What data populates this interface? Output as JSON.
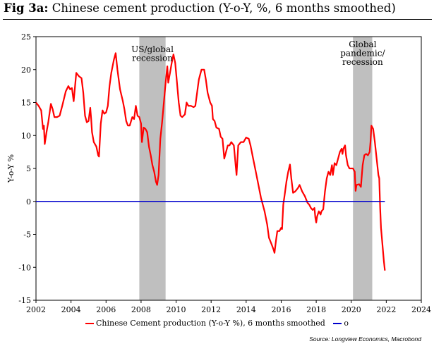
{
  "figure": {
    "label": "Fig 3a:",
    "title": "Chinese cement production (Y-o-Y, %, 6 months smoothed)",
    "source": "Source: Longview Economics, Macrobond"
  },
  "chart_data": {
    "type": "line",
    "ylabel": "Y-o-Y %",
    "xlim": [
      2002,
      2024
    ],
    "ylim": [
      -15,
      25
    ],
    "x_ticks": [
      "2002",
      "2004",
      "2006",
      "2008",
      "2010",
      "2012",
      "2014",
      "2016",
      "2018",
      "2020",
      "2022",
      "2024"
    ],
    "y_ticks": [
      "25",
      "20",
      "15",
      "10",
      "5",
      "0",
      "-5",
      "-10",
      "-15"
    ],
    "grid": false,
    "legend_position": "bottom",
    "shaded_regions": [
      {
        "x0": 2007.9,
        "x1": 2009.4,
        "label": [
          "US/global",
          "recession"
        ],
        "color": "#bfbfbf"
      },
      {
        "x0": 2020.1,
        "x1": 2021.2,
        "label": [
          "Global",
          "pandemic/",
          "recession"
        ],
        "color": "#bfbfbf"
      }
    ],
    "series": [
      {
        "name": "Chinese Cement production (Y-o-Y %), 6 months smoothed",
        "color": "#ff0000",
        "points": [
          [
            2002.0,
            15.0
          ],
          [
            2002.15,
            14.5
          ],
          [
            2002.3,
            13.8
          ],
          [
            2002.4,
            11.0
          ],
          [
            2002.45,
            11.5
          ],
          [
            2002.5,
            8.7
          ],
          [
            2002.6,
            10.5
          ],
          [
            2002.7,
            12.0
          ],
          [
            2002.85,
            14.8
          ],
          [
            2002.95,
            14.0
          ],
          [
            2003.05,
            12.8
          ],
          [
            2003.2,
            12.8
          ],
          [
            2003.35,
            13.0
          ],
          [
            2003.5,
            14.5
          ],
          [
            2003.7,
            16.7
          ],
          [
            2003.85,
            17.5
          ],
          [
            2003.95,
            17.0
          ],
          [
            2004.05,
            17.2
          ],
          [
            2004.15,
            15.2
          ],
          [
            2004.25,
            18.0
          ],
          [
            2004.3,
            19.5
          ],
          [
            2004.45,
            19.0
          ],
          [
            2004.6,
            18.7
          ],
          [
            2004.7,
            16.5
          ],
          [
            2004.8,
            13.0
          ],
          [
            2004.9,
            12.0
          ],
          [
            2005.0,
            12.2
          ],
          [
            2005.1,
            14.2
          ],
          [
            2005.15,
            12.5
          ],
          [
            2005.2,
            10.5
          ],
          [
            2005.3,
            9.0
          ],
          [
            2005.45,
            8.3
          ],
          [
            2005.55,
            7.0
          ],
          [
            2005.6,
            6.8
          ],
          [
            2005.7,
            11.8
          ],
          [
            2005.8,
            13.8
          ],
          [
            2005.9,
            13.3
          ],
          [
            2006.0,
            13.5
          ],
          [
            2006.1,
            14.5
          ],
          [
            2006.2,
            17.5
          ],
          [
            2006.3,
            19.5
          ],
          [
            2006.45,
            21.5
          ],
          [
            2006.55,
            22.5
          ],
          [
            2006.65,
            20.0
          ],
          [
            2006.8,
            17.0
          ],
          [
            2006.95,
            15.3
          ],
          [
            2007.05,
            14.0
          ],
          [
            2007.15,
            12.2
          ],
          [
            2007.25,
            11.5
          ],
          [
            2007.35,
            11.5
          ],
          [
            2007.5,
            12.8
          ],
          [
            2007.6,
            12.5
          ],
          [
            2007.7,
            14.5
          ],
          [
            2007.8,
            13.0
          ],
          [
            2007.9,
            12.8
          ],
          [
            2008.0,
            11.8
          ],
          [
            2008.05,
            9.0
          ],
          [
            2008.15,
            11.2
          ],
          [
            2008.25,
            11.0
          ],
          [
            2008.35,
            10.5
          ],
          [
            2008.45,
            8.3
          ],
          [
            2008.55,
            7.0
          ],
          [
            2008.65,
            5.5
          ],
          [
            2008.75,
            4.5
          ],
          [
            2008.85,
            3.0
          ],
          [
            2008.92,
            2.5
          ],
          [
            2009.0,
            4.0
          ],
          [
            2009.1,
            9.5
          ],
          [
            2009.2,
            12.0
          ],
          [
            2009.3,
            15.0
          ],
          [
            2009.4,
            18.0
          ],
          [
            2009.5,
            20.5
          ],
          [
            2009.55,
            18.0
          ],
          [
            2009.65,
            19.5
          ],
          [
            2009.75,
            21.0
          ],
          [
            2009.85,
            22.3
          ],
          [
            2009.95,
            21.0
          ],
          [
            2010.05,
            18.0
          ],
          [
            2010.15,
            15.0
          ],
          [
            2010.25,
            13.0
          ],
          [
            2010.35,
            12.8
          ],
          [
            2010.5,
            13.2
          ],
          [
            2010.6,
            15.0
          ],
          [
            2010.7,
            14.5
          ],
          [
            2010.85,
            14.5
          ],
          [
            2011.0,
            14.3
          ],
          [
            2011.1,
            14.5
          ],
          [
            2011.2,
            16.5
          ],
          [
            2011.3,
            18.5
          ],
          [
            2011.45,
            20.0
          ],
          [
            2011.6,
            20.0
          ],
          [
            2011.7,
            18.5
          ],
          [
            2011.8,
            16.5
          ],
          [
            2011.95,
            15.0
          ],
          [
            2012.05,
            14.5
          ],
          [
            2012.1,
            12.5
          ],
          [
            2012.2,
            12.2
          ],
          [
            2012.3,
            11.2
          ],
          [
            2012.45,
            11.0
          ],
          [
            2012.55,
            9.8
          ],
          [
            2012.65,
            9.5
          ],
          [
            2012.75,
            6.5
          ],
          [
            2012.85,
            7.5
          ],
          [
            2012.95,
            8.5
          ],
          [
            2013.05,
            8.5
          ],
          [
            2013.15,
            9.0
          ],
          [
            2013.3,
            8.5
          ],
          [
            2013.4,
            5.5
          ],
          [
            2013.45,
            4.0
          ],
          [
            2013.55,
            8.5
          ],
          [
            2013.7,
            9.0
          ],
          [
            2013.85,
            9.0
          ],
          [
            2014.0,
            9.7
          ],
          [
            2014.15,
            9.5
          ],
          [
            2014.25,
            8.5
          ],
          [
            2014.4,
            6.5
          ],
          [
            2014.55,
            4.5
          ],
          [
            2014.7,
            2.5
          ],
          [
            2014.85,
            0.5
          ],
          [
            2014.95,
            -0.5
          ],
          [
            2015.05,
            -1.5
          ],
          [
            2015.2,
            -3.5
          ],
          [
            2015.3,
            -5.5
          ],
          [
            2015.45,
            -6.5
          ],
          [
            2015.55,
            -7.2
          ],
          [
            2015.62,
            -7.8
          ],
          [
            2015.7,
            -6.0
          ],
          [
            2015.78,
            -4.5
          ],
          [
            2015.9,
            -4.5
          ],
          [
            2016.0,
            -4.0
          ],
          [
            2016.05,
            -4.2
          ],
          [
            2016.12,
            -0.5
          ],
          [
            2016.2,
            1.0
          ],
          [
            2016.3,
            3.0
          ],
          [
            2016.4,
            4.5
          ],
          [
            2016.5,
            5.6
          ],
          [
            2016.58,
            3.5
          ],
          [
            2016.68,
            1.3
          ],
          [
            2016.8,
            1.5
          ],
          [
            2016.95,
            2.0
          ],
          [
            2017.05,
            2.5
          ],
          [
            2017.2,
            1.5
          ],
          [
            2017.35,
            0.8
          ],
          [
            2017.5,
            -0.2
          ],
          [
            2017.6,
            -0.5
          ],
          [
            2017.7,
            -1.0
          ],
          [
            2017.8,
            -1.3
          ],
          [
            2017.9,
            -1.0
          ],
          [
            2017.95,
            -2.5
          ],
          [
            2018.0,
            -3.2
          ],
          [
            2018.05,
            -2.3
          ],
          [
            2018.15,
            -1.5
          ],
          [
            2018.25,
            -2.0
          ],
          [
            2018.3,
            -1.5
          ],
          [
            2018.4,
            -1.2
          ],
          [
            2018.5,
            1.5
          ],
          [
            2018.6,
            3.5
          ],
          [
            2018.7,
            4.5
          ],
          [
            2018.8,
            4.0
          ],
          [
            2018.9,
            5.5
          ],
          [
            2018.95,
            4.0
          ],
          [
            2019.05,
            5.8
          ],
          [
            2019.15,
            5.5
          ],
          [
            2019.25,
            6.5
          ],
          [
            2019.35,
            7.5
          ],
          [
            2019.45,
            8.0
          ],
          [
            2019.5,
            7.2
          ],
          [
            2019.55,
            8.0
          ],
          [
            2019.65,
            8.5
          ],
          [
            2019.7,
            7.0
          ],
          [
            2019.8,
            5.5
          ],
          [
            2019.9,
            5.0
          ],
          [
            2020.0,
            5.0
          ],
          [
            2020.1,
            5.0
          ],
          [
            2020.2,
            4.5
          ],
          [
            2020.25,
            1.6
          ],
          [
            2020.3,
            2.5
          ],
          [
            2020.45,
            2.6
          ],
          [
            2020.55,
            2.2
          ],
          [
            2020.65,
            5.5
          ],
          [
            2020.75,
            7.0
          ],
          [
            2020.85,
            7.2
          ],
          [
            2020.95,
            7.0
          ],
          [
            2021.05,
            7.5
          ],
          [
            2021.1,
            9.0
          ],
          [
            2021.15,
            11.5
          ],
          [
            2021.25,
            11.0
          ],
          [
            2021.35,
            9.0
          ],
          [
            2021.45,
            6.5
          ],
          [
            2021.55,
            4.0
          ],
          [
            2021.6,
            3.5
          ],
          [
            2021.65,
            -1.0
          ],
          [
            2021.7,
            -4.0
          ],
          [
            2021.78,
            -6.5
          ],
          [
            2021.86,
            -9.0
          ],
          [
            2021.92,
            -10.5
          ]
        ]
      },
      {
        "name": "o",
        "color": "#0000cc",
        "points": [
          [
            2002.0,
            0
          ],
          [
            2021.92,
            0
          ]
        ]
      }
    ]
  }
}
